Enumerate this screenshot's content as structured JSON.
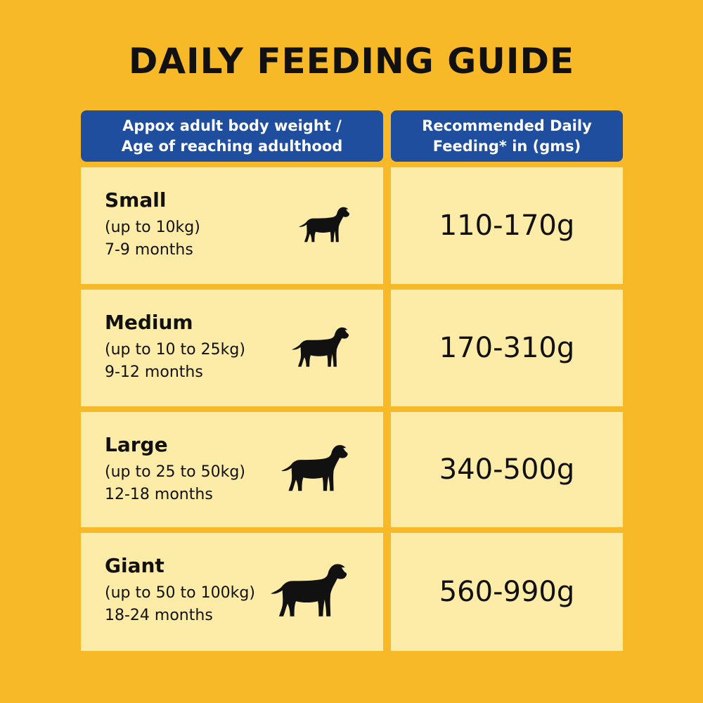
{
  "title": "DAILY FEEDING GUIDE",
  "headers": {
    "left": [
      "Appox adult body weight /",
      "Age of reaching adulthood"
    ],
    "right": [
      "Recommended Daily",
      "Feeding* in (gms)"
    ]
  },
  "colors": {
    "background": "#F7B928",
    "header": "#1F4E9E",
    "cell": "#FDEBA8"
  },
  "rows": [
    {
      "size": "Small",
      "weight": "(up to 10kg)",
      "age": "7-9 months",
      "feeding": "110-170g",
      "icon": "dog-icon"
    },
    {
      "size": "Medium",
      "weight": "(up to 10 to 25kg)",
      "age": "9-12 months",
      "feeding": "170-310g",
      "icon": "dog-icon"
    },
    {
      "size": "Large",
      "weight": "(up to 25 to 50kg)",
      "age": "12-18 months",
      "feeding": "340-500g",
      "icon": "dog-icon"
    },
    {
      "size": "Giant",
      "weight": "(up to 50 to 100kg)",
      "age": "18-24 months",
      "feeding": "560-990g",
      "icon": "dog-icon"
    }
  ]
}
